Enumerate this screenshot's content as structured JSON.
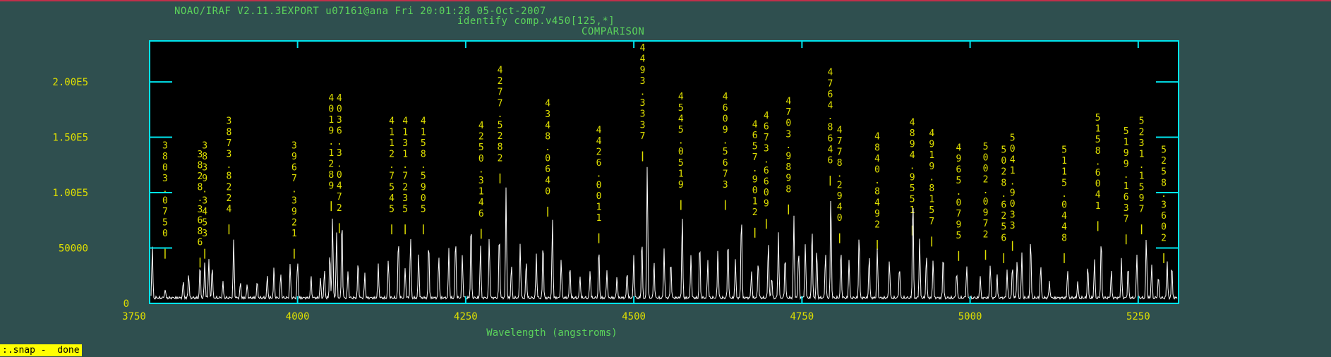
{
  "window": {
    "header_line1": "NOAO/IRAF V2.11.3EXPORT u07161@ana Fri 20:01:28 05-Oct-2007",
    "header_line2": "identify comp.v450[125,*]",
    "header_line3": "COMPARISON",
    "status_text": ":.snap -  done",
    "colors": {
      "background": "#2f4f4f",
      "frame": "#00e5ee",
      "plot_bg": "#000000",
      "trace": "#ffffff",
      "labels_green": "#5bd35b",
      "axis_numbers": "#e0e000",
      "line_ids": "#e0e000",
      "status_bg": "#ffff00"
    }
  },
  "chart_data": {
    "type": "line",
    "title": "COMPARISON",
    "xlabel": "Wavelength (angstroms)",
    "ylabel": "",
    "xlim": [
      3780,
      5310
    ],
    "ylim": [
      0,
      237000
    ],
    "x_ticks": [
      3750,
      4000,
      4250,
      4500,
      4750,
      5000,
      5250
    ],
    "x_tick_labels": [
      "3750",
      "4000",
      "4250",
      "4500",
      "4750",
      "5000",
      "5250"
    ],
    "y_ticks": [
      0,
      50000,
      100000,
      150000,
      200000
    ],
    "y_tick_labels": [
      "0",
      "50000",
      "1.00E5",
      "1.50E5",
      "2.00E5"
    ],
    "grid": false,
    "peaks": [
      {
        "x": 3784,
        "y": 47000
      },
      {
        "x": 3803,
        "y": 8000
      },
      {
        "x": 3830,
        "y": 15000
      },
      {
        "x": 3838,
        "y": 22000
      },
      {
        "x": 3855,
        "y": 30000
      },
      {
        "x": 3862,
        "y": 33000
      },
      {
        "x": 3868,
        "y": 36000
      },
      {
        "x": 3873,
        "y": 30000
      },
      {
        "x": 3889,
        "y": 14000
      },
      {
        "x": 3905,
        "y": 54000
      },
      {
        "x": 3915,
        "y": 14000
      },
      {
        "x": 3925,
        "y": 12000
      },
      {
        "x": 3940,
        "y": 15000
      },
      {
        "x": 3955,
        "y": 20000
      },
      {
        "x": 3965,
        "y": 28000
      },
      {
        "x": 3975,
        "y": 22000
      },
      {
        "x": 3989,
        "y": 30000
      },
      {
        "x": 4000,
        "y": 34000
      },
      {
        "x": 4020,
        "y": 20000
      },
      {
        "x": 4034,
        "y": 18000
      },
      {
        "x": 4040,
        "y": 25000
      },
      {
        "x": 4048,
        "y": 42000
      },
      {
        "x": 4052,
        "y": 75000
      },
      {
        "x": 4058,
        "y": 60000
      },
      {
        "x": 4066,
        "y": 75000
      },
      {
        "x": 4075,
        "y": 25000
      },
      {
        "x": 4090,
        "y": 35000
      },
      {
        "x": 4100,
        "y": 22000
      },
      {
        "x": 4120,
        "y": 30000
      },
      {
        "x": 4135,
        "y": 35000
      },
      {
        "x": 4150,
        "y": 55000
      },
      {
        "x": 4160,
        "y": 28000
      },
      {
        "x": 4168,
        "y": 55000
      },
      {
        "x": 4180,
        "y": 40000
      },
      {
        "x": 4195,
        "y": 52000
      },
      {
        "x": 4210,
        "y": 38000
      },
      {
        "x": 4225,
        "y": 45000
      },
      {
        "x": 4235,
        "y": 55000
      },
      {
        "x": 4245,
        "y": 40000
      },
      {
        "x": 4258,
        "y": 70000
      },
      {
        "x": 4272,
        "y": 48000
      },
      {
        "x": 4285,
        "y": 55000
      },
      {
        "x": 4300,
        "y": 60000
      },
      {
        "x": 4310,
        "y": 100000
      },
      {
        "x": 4318,
        "y": 30000
      },
      {
        "x": 4331,
        "y": 50000
      },
      {
        "x": 4340,
        "y": 35000
      },
      {
        "x": 4355,
        "y": 40000
      },
      {
        "x": 4365,
        "y": 52000
      },
      {
        "x": 4379,
        "y": 72000
      },
      {
        "x": 4392,
        "y": 35000
      },
      {
        "x": 4405,
        "y": 30000
      },
      {
        "x": 4420,
        "y": 20000
      },
      {
        "x": 4435,
        "y": 25000
      },
      {
        "x": 4448,
        "y": 46000
      },
      {
        "x": 4460,
        "y": 25000
      },
      {
        "x": 4475,
        "y": 20000
      },
      {
        "x": 4490,
        "y": 25000
      },
      {
        "x": 4500,
        "y": 40000
      },
      {
        "x": 4512,
        "y": 55000
      },
      {
        "x": 4520,
        "y": 122000
      },
      {
        "x": 4530,
        "y": 35000
      },
      {
        "x": 4545,
        "y": 45000
      },
      {
        "x": 4555,
        "y": 35000
      },
      {
        "x": 4572,
        "y": 76000
      },
      {
        "x": 4585,
        "y": 40000
      },
      {
        "x": 4598,
        "y": 50000
      },
      {
        "x": 4610,
        "y": 35000
      },
      {
        "x": 4625,
        "y": 45000
      },
      {
        "x": 4640,
        "y": 55000
      },
      {
        "x": 4651,
        "y": 35000
      },
      {
        "x": 4660,
        "y": 78000
      },
      {
        "x": 4675,
        "y": 25000
      },
      {
        "x": 4685,
        "y": 35000
      },
      {
        "x": 4700,
        "y": 52000
      },
      {
        "x": 4705,
        "y": 20000
      },
      {
        "x": 4715,
        "y": 60000
      },
      {
        "x": 4725,
        "y": 40000
      },
      {
        "x": 4738,
        "y": 75000
      },
      {
        "x": 4745,
        "y": 45000
      },
      {
        "x": 4755,
        "y": 50000
      },
      {
        "x": 4765,
        "y": 65000
      },
      {
        "x": 4772,
        "y": 45000
      },
      {
        "x": 4785,
        "y": 42000
      },
      {
        "x": 4793,
        "y": 95000
      },
      {
        "x": 4808,
        "y": 45000
      },
      {
        "x": 4820,
        "y": 35000
      },
      {
        "x": 4835,
        "y": 60000
      },
      {
        "x": 4850,
        "y": 40000
      },
      {
        "x": 4862,
        "y": 45000
      },
      {
        "x": 4880,
        "y": 35000
      },
      {
        "x": 4895,
        "y": 30000
      },
      {
        "x": 4915,
        "y": 95000
      },
      {
        "x": 4925,
        "y": 55000
      },
      {
        "x": 4935,
        "y": 40000
      },
      {
        "x": 4945,
        "y": 35000
      },
      {
        "x": 4960,
        "y": 40000
      },
      {
        "x": 4980,
        "y": 25000
      },
      {
        "x": 4995,
        "y": 30000
      },
      {
        "x": 5015,
        "y": 20000
      },
      {
        "x": 5030,
        "y": 30000
      },
      {
        "x": 5040,
        "y": 22000
      },
      {
        "x": 5055,
        "y": 25000
      },
      {
        "x": 5063,
        "y": 30000
      },
      {
        "x": 5070,
        "y": 35000
      },
      {
        "x": 5077,
        "y": 40000
      },
      {
        "x": 5090,
        "y": 55000
      },
      {
        "x": 5105,
        "y": 30000
      },
      {
        "x": 5118,
        "y": 15000
      },
      {
        "x": 5145,
        "y": 25000
      },
      {
        "x": 5160,
        "y": 15000
      },
      {
        "x": 5175,
        "y": 30000
      },
      {
        "x": 5185,
        "y": 35000
      },
      {
        "x": 5195,
        "y": 55000
      },
      {
        "x": 5210,
        "y": 25000
      },
      {
        "x": 5225,
        "y": 35000
      },
      {
        "x": 5235,
        "y": 30000
      },
      {
        "x": 5248,
        "y": 40000
      },
      {
        "x": 5262,
        "y": 55000
      },
      {
        "x": 5270,
        "y": 30000
      },
      {
        "x": 5280,
        "y": 20000
      },
      {
        "x": 5293,
        "y": 35000
      },
      {
        "x": 5300,
        "y": 30000
      }
    ],
    "line_ids": [
      {
        "wave": 3803,
        "label": "3803.0750",
        "y_top": 140000
      },
      {
        "wave": 3855,
        "label": "3828.3686",
        "y_top": 132000
      },
      {
        "wave": 3862,
        "label": "3839.3453",
        "y_top": 140000
      },
      {
        "wave": 3898,
        "label": "3873.8224",
        "y_top": 162000
      },
      {
        "wave": 3995,
        "label": "3967.3921",
        "y_top": 140000
      },
      {
        "wave": 4050,
        "label": "4019.1289",
        "y_top": 183000
      },
      {
        "wave": 4062,
        "label": "4036.3.0472",
        "y_top": 183000
      },
      {
        "wave": 4140,
        "label": "4112.7545",
        "y_top": 162000
      },
      {
        "wave": 4160,
        "label": "4131.7235",
        "y_top": 162000
      },
      {
        "wave": 4187,
        "label": "4158.5905",
        "y_top": 162000
      },
      {
        "wave": 4273,
        "label": "4250.3146",
        "y_top": 158000
      },
      {
        "wave": 4301,
        "label": "4277.5282",
        "y_top": 208000
      },
      {
        "wave": 4372,
        "label": "4348.0640",
        "y_top": 178000
      },
      {
        "wave": 4448,
        "label": "4426.0011",
        "y_top": 154000
      },
      {
        "wave": 4513,
        "label": "4493.3337",
        "y_top": 228000
      },
      {
        "wave": 4570,
        "label": "4545.0519",
        "y_top": 184000
      },
      {
        "wave": 4636,
        "label": "4609.5673",
        "y_top": 184000
      },
      {
        "wave": 4680,
        "label": "4657.9012",
        "y_top": 159000
      },
      {
        "wave": 4697,
        "label": "4673.6609",
        "y_top": 167000
      },
      {
        "wave": 4730,
        "label": "4703.9898",
        "y_top": 180000
      },
      {
        "wave": 4792,
        "label": "4764.8646",
        "y_top": 206000
      },
      {
        "wave": 4806,
        "label": "4778.2940",
        "y_top": 154000
      },
      {
        "wave": 4862,
        "label": "4840.8492",
        "y_top": 148000
      },
      {
        "wave": 4914,
        "label": "4894.9551",
        "y_top": 161000
      },
      {
        "wave": 4943,
        "label": "4919.8157",
        "y_top": 151000
      },
      {
        "wave": 4983,
        "label": "4965.0795",
        "y_top": 138000
      },
      {
        "wave": 5023,
        "label": "5002.0972",
        "y_top": 139000
      },
      {
        "wave": 5050,
        "label": "5028.6256",
        "y_top": 136000
      },
      {
        "wave": 5063,
        "label": "5041.9033",
        "y_top": 147000
      },
      {
        "wave": 5140,
        "label": "5115.0448",
        "y_top": 136000
      },
      {
        "wave": 5190,
        "label": "5158.6041",
        "y_top": 165000
      },
      {
        "wave": 5232,
        "label": "5199.1637",
        "y_top": 153000
      },
      {
        "wave": 5255,
        "label": "5231.1597",
        "y_top": 162000
      },
      {
        "wave": 5288,
        "label": "5258.3602",
        "y_top": 136000
      }
    ]
  }
}
